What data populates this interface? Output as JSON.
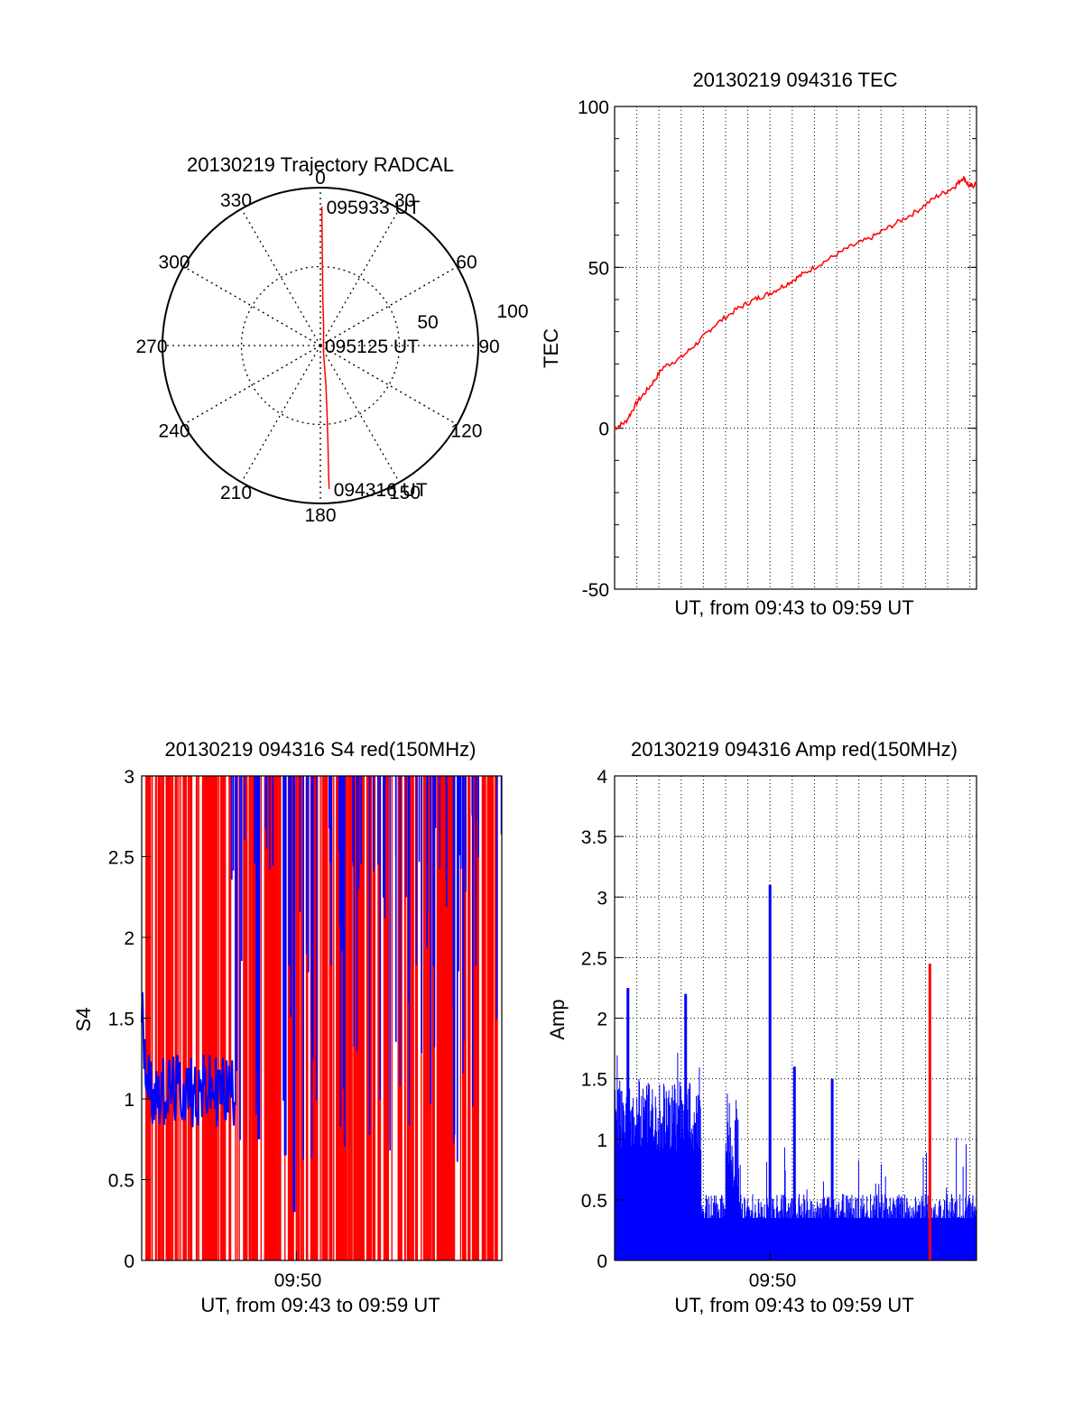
{
  "charts": [
    {
      "type": "polar",
      "title": "20130219 Trajectory RADCAL",
      "azimuth_labels": [
        "0",
        "30",
        "60",
        "90",
        "120",
        "150",
        "180",
        "210",
        "240",
        "270",
        "300",
        "330"
      ],
      "radial_labels": [
        "50",
        "100"
      ],
      "rmax": 100,
      "time_labels": [
        {
          "text": "095933 UT",
          "az": 0.6,
          "r": 88
        },
        {
          "text": "095125 UT",
          "az": 90,
          "r": 0
        },
        {
          "text": "094316 UT",
          "az": 176.5,
          "r": 91
        }
      ],
      "trajectory": [
        [
          0.6,
          88
        ],
        [
          0.9,
          70
        ],
        [
          1.5,
          50
        ],
        [
          3,
          30
        ],
        [
          10,
          12
        ],
        [
          90,
          2
        ],
        [
          160,
          6
        ],
        [
          172,
          25
        ],
        [
          174.5,
          45
        ],
        [
          175.7,
          65
        ],
        [
          176.3,
          80
        ],
        [
          176.5,
          91
        ]
      ],
      "color": "#ff0000"
    },
    {
      "type": "line",
      "title": "20130219 094316 TEC",
      "xlabel": "UT, from 09:43 to 09:59 UT",
      "ylabel": "TEC",
      "ylim": [
        -50,
        100
      ],
      "yticks": [
        "100",
        "50",
        "0",
        "-50"
      ],
      "xlim_minutes": [
        0,
        16.3
      ],
      "series": [
        {
          "color": "#ff0000",
          "points": [
            [
              0,
              0
            ],
            [
              0.5,
              2
            ],
            [
              1,
              8
            ],
            [
              1.6,
              13
            ],
            [
              2.2,
              19
            ],
            [
              3,
              22
            ],
            [
              3.8,
              27
            ],
            [
              4.5,
              32
            ],
            [
              5.5,
              37
            ],
            [
              6.3,
              40
            ],
            [
              7,
              42
            ],
            [
              7.8,
              45
            ],
            [
              8.5,
              48
            ],
            [
              9.5,
              52
            ],
            [
              10.5,
              56
            ],
            [
              11.5,
              59
            ],
            [
              12.5,
              63
            ],
            [
              13.5,
              67
            ],
            [
              14.5,
              72
            ],
            [
              15.3,
              75
            ],
            [
              15.7,
              78
            ],
            [
              16,
              75
            ],
            [
              16.3,
              76
            ]
          ]
        }
      ]
    },
    {
      "type": "line",
      "title": "20130219 094316 S4 red(150MHz)",
      "xlabel": "UT, from 09:43 to 09:59 UT",
      "ylabel": "S4",
      "ylim": [
        0,
        3
      ],
      "yticks": [
        "3",
        "2.5",
        "2",
        "1.5",
        "1",
        "0.5",
        "0"
      ],
      "xtick_label": "09:50",
      "xtick_minute": 7,
      "xlim_minutes": [
        0,
        16.3
      ],
      "series": [
        {
          "name": "red",
          "color": "#ff0000"
        },
        {
          "name": "blue",
          "color": "#0000ff"
        }
      ]
    },
    {
      "type": "line",
      "title": "20130219 094316 Amp red(150MHz)",
      "xlabel": "UT, from 09:43 to 09:59 UT",
      "ylabel": "Amp",
      "ylim": [
        0,
        4
      ],
      "yticks": [
        "4",
        "3.5",
        "3",
        "2.5",
        "2",
        "1.5",
        "1",
        "0.5",
        "0"
      ],
      "xtick_label": "09:50",
      "xtick_minute": 7,
      "xlim_minutes": [
        0,
        16.3
      ],
      "peaks": [
        {
          "minute": 7,
          "value": 3.1,
          "color": "#0000ff"
        },
        {
          "minute": 14.2,
          "value": 2.45,
          "color": "#ff0000"
        },
        {
          "minute": 0.6,
          "value": 2.25,
          "color": "#0000ff"
        },
        {
          "minute": 3.2,
          "value": 2.2,
          "color": "#0000ff"
        },
        {
          "minute": 9.8,
          "value": 1.5,
          "color": "#0000ff"
        },
        {
          "minute": 8.1,
          "value": 1.6,
          "color": "#0000ff"
        }
      ],
      "series": [
        {
          "name": "red",
          "color": "#ff0000"
        },
        {
          "name": "blue",
          "color": "#0000ff"
        }
      ]
    }
  ]
}
